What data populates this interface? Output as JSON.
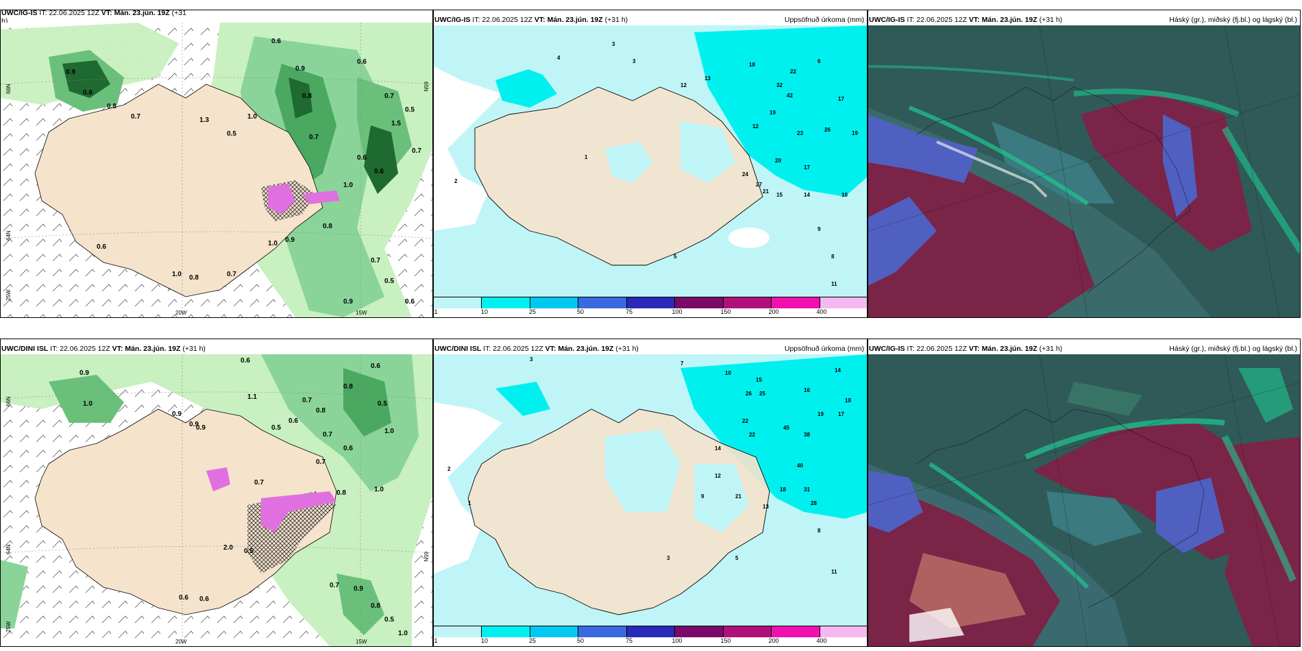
{
  "top_left": {
    "title_model": "UWC/IG-IS",
    "title_it": " IT: 22.06.2025 12Z ",
    "title_vt": "VT: Mán. 23.jún. 19Z",
    "title_lead": " (+31",
    "title_lead2": "h)",
    "lat_labels": [
      "66N",
      "64N",
      "65N"
    ],
    "lon_labels": [
      "20W",
      "15W",
      "25W"
    ],
    "values": [
      "0.9",
      "0.6",
      "0.8",
      "0.7",
      "1.3",
      "0.5",
      "1.0",
      "0.6",
      "0.9",
      "0.8",
      "0.6",
      "0.7",
      "0.5",
      "1.5",
      "0.7",
      "0.6",
      "1.0",
      "0.8",
      "0.9",
      "0.7",
      "0.5",
      "0.6",
      "1.0",
      "0.8",
      "0.7",
      "0.6",
      "1.0",
      "0.9",
      "0.7",
      "0.6"
    ]
  },
  "top_mid": {
    "title_model": "UWC/IG-IS",
    "title_it": " IT: 22.06.2025 12Z ",
    "title_vt": "VT: Mán. 23.jún. 19Z",
    "title_lead": " (+31 h)",
    "right_title": "Uppsöfnuð úrkoma (mm)",
    "values": [
      "3",
      "3",
      "4",
      "12",
      "13",
      "17",
      "23",
      "42",
      "17",
      "19",
      "14",
      "18",
      "24",
      "27",
      "32",
      "12",
      "10",
      "9",
      "8",
      "5",
      "2",
      "1",
      "6",
      "11",
      "22",
      "20",
      "15",
      "26",
      "19",
      "21"
    ]
  },
  "top_right": {
    "title_model": "UWC/IG-IS",
    "title_it": " IT: 22.06.2025 12Z ",
    "title_vt": "VT: Mán. 23.jún. 19Z",
    "title_lead": " (+31 h)",
    "right_title": "Háský (gr.), miðský (fj.bl.) og lágský (bl.)"
  },
  "bottom_left": {
    "title_model": "UWC/DINI ISL",
    "title_it": " IT: 22.06.2025 12Z ",
    "title_vt": "VT: Mán. 23.jún. 19Z",
    "title_lead": " (+31 h)",
    "lat_labels": [
      "66N",
      "64N",
      "65N"
    ],
    "lon_labels": [
      "20W",
      "15W",
      "25W"
    ],
    "values": [
      "0.6",
      "0.9",
      "1.0",
      "0.6",
      "0.8",
      "0.7",
      "0.5",
      "1.1",
      "0.9",
      "0.6",
      "0.8",
      "1.0",
      "0.7",
      "0.9",
      "0.5",
      "0.6",
      "0.7",
      "2.0",
      "0.5",
      "0.8",
      "0.6",
      "0.7",
      "1.0",
      "0.9",
      "0.8",
      "0.5",
      "0.6",
      "1.0",
      "0.7",
      "0.9"
    ]
  },
  "bottom_mid": {
    "title_model": "UWC/DINI ISL",
    "title_it": " IT: 22.06.2025 12Z ",
    "title_vt": "VT: Mán. 23.jún. 19Z",
    "title_lead": " (+31 h)",
    "right_title": "Uppsöfnuð úrkoma (mm)",
    "values": [
      "3",
      "7",
      "10",
      "15",
      "14",
      "16",
      "17",
      "18",
      "26",
      "25",
      "22",
      "45",
      "38",
      "40",
      "31",
      "21",
      "18",
      "13",
      "12",
      "8",
      "5",
      "3",
      "2",
      "1",
      "9",
      "11",
      "14",
      "19",
      "22",
      "28"
    ]
  },
  "bottom_right": {
    "title_model": "UWC/IG-IS",
    "title_it": " IT: 22.06.2025 12Z ",
    "title_vt": "VT: Mán. 23.jún. 19Z",
    "title_lead": " (+31 h)",
    "right_title": "Háský (gr.), miðský (fj.bl.) og lágský (bl.)"
  },
  "colorbar": {
    "labels": [
      "1",
      "10",
      "25",
      "50",
      "75",
      "100",
      "150",
      "200",
      "400"
    ],
    "colors": [
      "#bff5f7",
      "#00f0f0",
      "#00c8f0",
      "#3a6ae0",
      "#2a2ab8",
      "#7a0a6a",
      "#b0107a",
      "#f010b0",
      "#f5b8f0"
    ]
  },
  "colors": {
    "land": "#f5e3cc",
    "precip_light": "#c8f0c0",
    "precip_mid": "#6ac07a",
    "precip_dark": "#1e6a30",
    "cyan_light": "#b8f0f5",
    "cyan": "#00f5f5",
    "cloud_dark": "#2f5a58",
    "cloud_purple": "#7a2448",
    "cloud_blue": "#5060c0",
    "cloud_green": "#20c890"
  }
}
